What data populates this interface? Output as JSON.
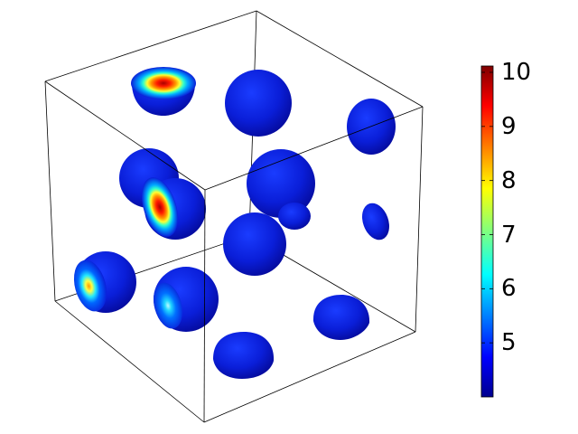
{
  "colorbar": {
    "min": 4,
    "max": 10,
    "ticks": [
      "5",
      "6",
      "7",
      "8",
      "9",
      "10"
    ],
    "colormap": "jet"
  },
  "colors": {
    "box_edge": "#000000",
    "background": "#ffffff"
  },
  "blobs": [
    {
      "id": "blob-top-left",
      "peak": 10
    },
    {
      "id": "blob-top-center",
      "peak": 4
    },
    {
      "id": "blob-top-right",
      "peak": 4
    },
    {
      "id": "blob-mid-left",
      "peak": 4
    },
    {
      "id": "blob-mid-left-front",
      "peak": 10
    },
    {
      "id": "blob-center",
      "peak": 4
    },
    {
      "id": "blob-center-small",
      "peak": 4
    },
    {
      "id": "blob-right-small",
      "peak": 4
    },
    {
      "id": "blob-center-low",
      "peak": 4
    },
    {
      "id": "blob-left-low",
      "peak": 8.6
    },
    {
      "id": "blob-front-low",
      "peak": 5.6
    },
    {
      "id": "blob-right-low",
      "peak": 4
    },
    {
      "id": "blob-bottom",
      "peak": 4
    }
  ]
}
